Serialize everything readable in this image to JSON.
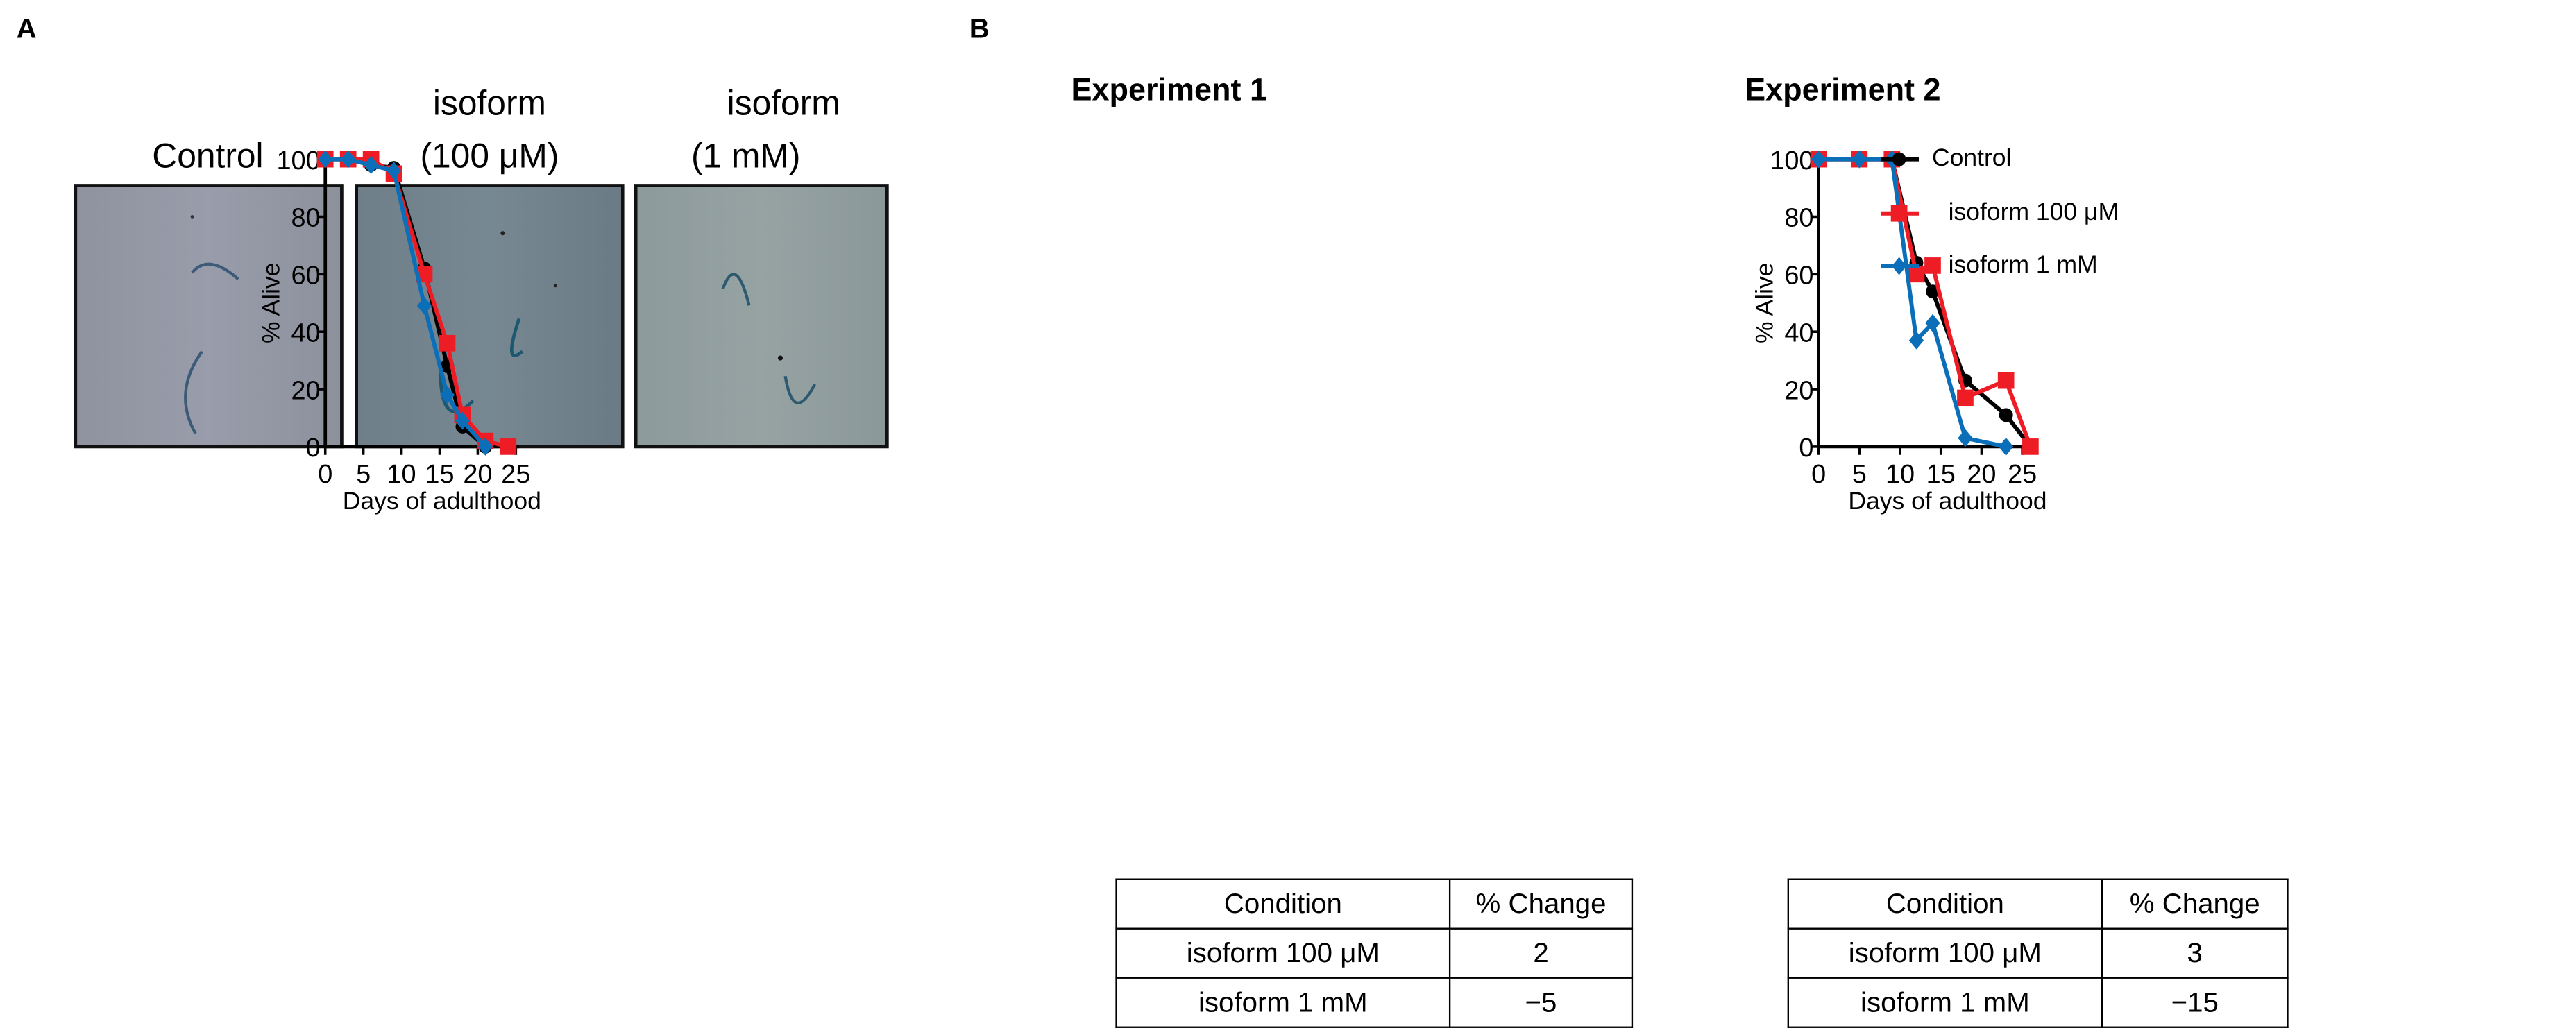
{
  "panel_a": {
    "label": "A",
    "images": [
      {
        "caption_line1": "",
        "caption_line2": "Control"
      },
      {
        "caption_line1": "isoform",
        "caption_line2": "(100 μM)"
      },
      {
        "caption_line1": "isoform",
        "caption_line2": "(1 mM)"
      }
    ]
  },
  "panel_b": {
    "label": "B"
  },
  "colors": {
    "control": "#000000",
    "isoform_100uM": "#ee1c25",
    "isoform_1mM": "#0a6fb8"
  },
  "chart_data": [
    {
      "type": "line",
      "title": "Experiment 1",
      "xlabel": "Days of adulthood",
      "ylabel": "% Alive",
      "xlim": [
        0,
        25
      ],
      "ylim": [
        0,
        100
      ],
      "xticks": [
        "0",
        "5",
        "10",
        "15",
        "20",
        "25"
      ],
      "yticks": [
        "0",
        "20",
        "40",
        "60",
        "80",
        "100"
      ],
      "series": [
        {
          "name": "Control",
          "marker": "circle",
          "x": [
            0,
            3,
            6,
            9,
            13,
            16,
            18,
            21
          ],
          "y": [
            100,
            100,
            98,
            97,
            62,
            28,
            7,
            0
          ]
        },
        {
          "name": "isoform 100 μM",
          "marker": "square",
          "x": [
            0,
            3,
            6,
            9,
            13,
            16,
            18,
            21,
            24
          ],
          "y": [
            100,
            100,
            100,
            95,
            60,
            36,
            11,
            2,
            0
          ]
        },
        {
          "name": "isoform 1 mM",
          "marker": "diamond",
          "x": [
            0,
            3,
            6,
            9,
            13,
            16,
            18,
            21
          ],
          "y": [
            100,
            100,
            98,
            96,
            49,
            18,
            9,
            0
          ]
        }
      ],
      "table": {
        "headers": [
          "Condition",
          "% Change"
        ],
        "rows": [
          [
            "isoform 100 μM",
            "2"
          ],
          [
            "isoform 1 mM",
            "−5"
          ]
        ]
      }
    },
    {
      "type": "line",
      "title": "Experiment 2",
      "xlabel": "Days of adulthood",
      "ylabel": "% Alive",
      "xlim": [
        0,
        25
      ],
      "ylim": [
        0,
        100
      ],
      "xticks": [
        "0",
        "5",
        "10",
        "15",
        "20",
        "25"
      ],
      "yticks": [
        "0",
        "20",
        "40",
        "60",
        "80",
        "100"
      ],
      "legend": "right",
      "series": [
        {
          "name": "Control",
          "marker": "circle",
          "x": [
            0,
            5,
            9,
            12,
            14,
            18,
            23,
            26
          ],
          "y": [
            100,
            100,
            100,
            64,
            54,
            23,
            11,
            0
          ]
        },
        {
          "name": "isoform 100 μM",
          "marker": "square",
          "x": [
            0,
            5,
            9,
            12,
            14,
            18,
            23,
            26
          ],
          "y": [
            100,
            100,
            100,
            60,
            63,
            17,
            23,
            0
          ]
        },
        {
          "name": "isoform 1 mM",
          "marker": "diamond",
          "x": [
            0,
            5,
            9,
            12,
            14,
            18,
            23
          ],
          "y": [
            100,
            100,
            100,
            37,
            43,
            3,
            0
          ]
        }
      ],
      "table": {
        "headers": [
          "Condition",
          "% Change"
        ],
        "rows": [
          [
            "isoform 100 μM",
            "3"
          ],
          [
            "isoform 1 mM",
            "−15"
          ]
        ]
      }
    }
  ]
}
